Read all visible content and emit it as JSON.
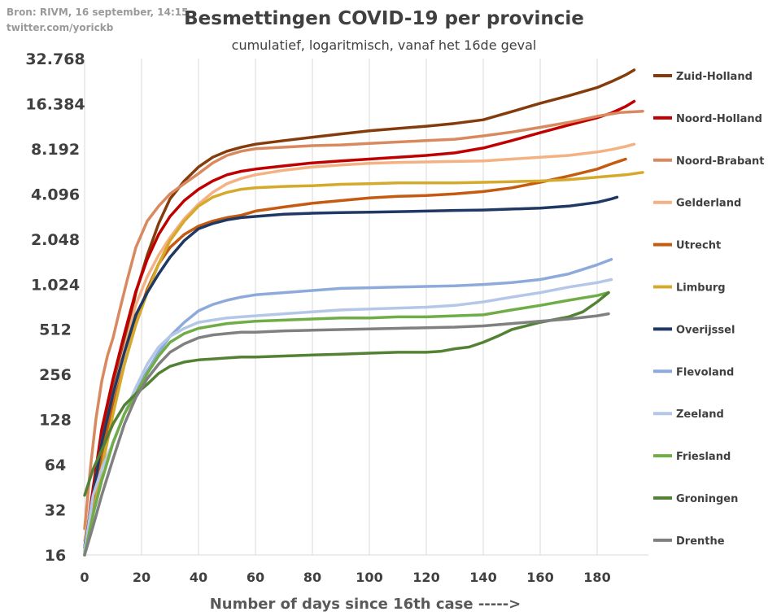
{
  "source_lines": [
    "Bron: RIVM, 16 september, 14:15",
    "twitter.com/yorickb"
  ],
  "chart_data": {
    "type": "line",
    "title": "Besmettingen COVID-19 per provincie",
    "subtitle": "cumulatief, logaritmisch, vanaf het 16de geval",
    "xlabel": "Number of days since 16th case  ----->",
    "ylabel": "",
    "yscale": "log2",
    "xlim": [
      0,
      198
    ],
    "ylim": [
      16,
      32768
    ],
    "xticks": [
      0,
      20,
      40,
      60,
      80,
      100,
      120,
      140,
      160,
      180
    ],
    "yticks": [
      16,
      32,
      64,
      128,
      256,
      512,
      1024,
      2048,
      4096,
      8192,
      16384,
      32768
    ],
    "ytick_labels": [
      "16",
      "32",
      "64",
      "128",
      "256",
      "512",
      "1.024",
      "2.048",
      "4.096",
      "8.192",
      "16.384",
      "32.768"
    ],
    "grid": "vertical",
    "legend_position": "right",
    "series": [
      {
        "name": "Zuid-Holland",
        "color": "#843c0c",
        "x": [
          0,
          3,
          6,
          10,
          14,
          18,
          22,
          26,
          30,
          35,
          40,
          45,
          50,
          55,
          60,
          70,
          80,
          90,
          100,
          110,
          120,
          130,
          140,
          150,
          160,
          170,
          180,
          185,
          190,
          193
        ],
        "y": [
          16,
          40,
          100,
          200,
          400,
          900,
          1600,
          2600,
          3800,
          5000,
          6200,
          7200,
          7900,
          8400,
          8800,
          9300,
          9800,
          10300,
          10800,
          11200,
          11600,
          12100,
          12800,
          14500,
          16500,
          18500,
          21000,
          23000,
          25500,
          27500
        ]
      },
      {
        "name": "Noord-Holland",
        "color": "#c00000",
        "x": [
          0,
          3,
          6,
          10,
          14,
          18,
          22,
          26,
          30,
          35,
          40,
          45,
          50,
          55,
          60,
          70,
          80,
          90,
          100,
          110,
          120,
          130,
          140,
          150,
          160,
          170,
          180,
          185,
          190,
          193
        ],
        "y": [
          18,
          45,
          110,
          240,
          480,
          920,
          1500,
          2200,
          2900,
          3700,
          4400,
          5000,
          5500,
          5800,
          6000,
          6300,
          6600,
          6800,
          7000,
          7200,
          7400,
          7700,
          8300,
          9300,
          10500,
          11800,
          13200,
          14200,
          15700,
          17000
        ]
      },
      {
        "name": "Noord-Brabant",
        "color": "#d9895f",
        "x": [
          0,
          2,
          4,
          6,
          8,
          10,
          12,
          15,
          18,
          22,
          26,
          30,
          35,
          40,
          45,
          50,
          55,
          60,
          70,
          80,
          90,
          100,
          110,
          120,
          130,
          140,
          150,
          160,
          170,
          180,
          185,
          188,
          196
        ],
        "y": [
          24,
          60,
          130,
          230,
          340,
          450,
          650,
          1100,
          1800,
          2700,
          3400,
          4100,
          4800,
          5600,
          6600,
          7400,
          7900,
          8200,
          8400,
          8600,
          8700,
          8900,
          9100,
          9300,
          9500,
          10000,
          10600,
          11400,
          12300,
          13500,
          14000,
          14300,
          14600
        ]
      },
      {
        "name": "Gelderland",
        "color": "#f4b183",
        "x": [
          0,
          3,
          6,
          10,
          14,
          18,
          22,
          26,
          30,
          35,
          40,
          45,
          50,
          55,
          60,
          70,
          80,
          90,
          100,
          110,
          120,
          130,
          140,
          150,
          160,
          170,
          180,
          185,
          190,
          193
        ],
        "y": [
          20,
          40,
          90,
          190,
          380,
          750,
          1150,
          1600,
          2100,
          2800,
          3500,
          4200,
          4800,
          5200,
          5500,
          5900,
          6200,
          6400,
          6550,
          6650,
          6700,
          6750,
          6800,
          7000,
          7200,
          7400,
          7800,
          8100,
          8500,
          8800
        ]
      },
      {
        "name": "Utrecht",
        "color": "#c55a11",
        "x": [
          0,
          3,
          6,
          10,
          14,
          18,
          22,
          26,
          30,
          35,
          40,
          45,
          50,
          55,
          60,
          70,
          80,
          90,
          100,
          110,
          120,
          130,
          140,
          150,
          160,
          170,
          180,
          185,
          190
        ],
        "y": [
          17,
          35,
          75,
          160,
          300,
          560,
          950,
          1400,
          1800,
          2200,
          2500,
          2700,
          2850,
          2950,
          3150,
          3350,
          3550,
          3700,
          3850,
          3950,
          4000,
          4100,
          4250,
          4500,
          4900,
          5400,
          6000,
          6500,
          7000
        ]
      },
      {
        "name": "Limburg",
        "color": "#d4a92c",
        "x": [
          0,
          3,
          6,
          10,
          14,
          18,
          22,
          26,
          30,
          35,
          40,
          45,
          50,
          55,
          60,
          70,
          80,
          90,
          100,
          110,
          120,
          130,
          140,
          150,
          160,
          170,
          180,
          185,
          190,
          196
        ],
        "y": [
          16,
          30,
          60,
          140,
          300,
          550,
          900,
          1400,
          2000,
          2700,
          3400,
          3900,
          4200,
          4400,
          4500,
          4600,
          4650,
          4750,
          4800,
          4850,
          4850,
          4850,
          4900,
          4950,
          5000,
          5100,
          5300,
          5400,
          5500,
          5700
        ]
      },
      {
        "name": "Overijssel",
        "color": "#1f3864",
        "x": [
          0,
          3,
          6,
          10,
          14,
          18,
          22,
          26,
          30,
          35,
          40,
          45,
          50,
          55,
          60,
          70,
          80,
          90,
          100,
          110,
          120,
          130,
          140,
          150,
          160,
          170,
          180,
          185,
          187
        ],
        "y": [
          18,
          40,
          90,
          190,
          360,
          640,
          900,
          1200,
          1550,
          2000,
          2400,
          2600,
          2750,
          2850,
          2900,
          3000,
          3050,
          3080,
          3100,
          3120,
          3150,
          3180,
          3200,
          3250,
          3300,
          3400,
          3600,
          3800,
          3900
        ]
      },
      {
        "name": "Flevoland",
        "color": "#8eaadb",
        "x": [
          0,
          3,
          6,
          10,
          14,
          18,
          22,
          26,
          30,
          35,
          40,
          45,
          50,
          55,
          60,
          70,
          80,
          90,
          100,
          110,
          120,
          130,
          140,
          150,
          160,
          170,
          180,
          185
        ],
        "y": [
          18,
          30,
          50,
          90,
          140,
          200,
          270,
          360,
          460,
          570,
          680,
          750,
          800,
          840,
          870,
          900,
          930,
          960,
          970,
          980,
          990,
          1000,
          1020,
          1050,
          1100,
          1200,
          1380,
          1500
        ]
      },
      {
        "name": "Zeeland",
        "color": "#b4c7e7",
        "x": [
          0,
          3,
          6,
          10,
          14,
          18,
          22,
          26,
          30,
          35,
          40,
          45,
          50,
          55,
          60,
          70,
          80,
          90,
          100,
          110,
          120,
          130,
          140,
          150,
          160,
          170,
          180,
          185
        ],
        "y": [
          17,
          40,
          60,
          90,
          140,
          210,
          300,
          390,
          460,
          520,
          570,
          590,
          610,
          620,
          630,
          650,
          670,
          690,
          700,
          710,
          720,
          740,
          780,
          840,
          900,
          980,
          1050,
          1100
        ]
      },
      {
        "name": "Friesland",
        "color": "#70ad47",
        "x": [
          0,
          3,
          6,
          10,
          14,
          18,
          22,
          26,
          30,
          35,
          40,
          45,
          50,
          55,
          60,
          70,
          80,
          90,
          100,
          110,
          120,
          130,
          140,
          150,
          160,
          170,
          180,
          184
        ],
        "y": [
          16,
          30,
          50,
          90,
          140,
          190,
          260,
          340,
          420,
          480,
          520,
          540,
          560,
          570,
          580,
          590,
          600,
          610,
          610,
          620,
          620,
          630,
          640,
          690,
          740,
          800,
          860,
          900
        ]
      },
      {
        "name": "Groningen",
        "color": "#548235",
        "x": [
          0,
          3,
          6,
          10,
          14,
          18,
          22,
          26,
          30,
          35,
          40,
          45,
          50,
          55,
          60,
          70,
          80,
          90,
          100,
          110,
          120,
          125,
          130,
          135,
          140,
          145,
          150,
          160,
          170,
          175,
          180,
          184
        ],
        "y": [
          40,
          60,
          80,
          120,
          160,
          190,
          220,
          260,
          290,
          310,
          320,
          325,
          330,
          335,
          335,
          340,
          345,
          350,
          355,
          360,
          360,
          365,
          380,
          390,
          420,
          460,
          510,
          570,
          620,
          670,
          780,
          900
        ]
      },
      {
        "name": "Drenthe",
        "color": "#808080",
        "x": [
          0,
          3,
          6,
          10,
          14,
          18,
          22,
          26,
          30,
          35,
          40,
          45,
          50,
          55,
          60,
          70,
          80,
          90,
          100,
          110,
          120,
          130,
          140,
          150,
          160,
          170,
          180,
          184
        ],
        "y": [
          16,
          25,
          40,
          70,
          120,
          180,
          240,
          300,
          360,
          410,
          450,
          470,
          480,
          490,
          490,
          500,
          505,
          510,
          515,
          520,
          525,
          530,
          540,
          560,
          580,
          600,
          630,
          650
        ]
      }
    ]
  }
}
